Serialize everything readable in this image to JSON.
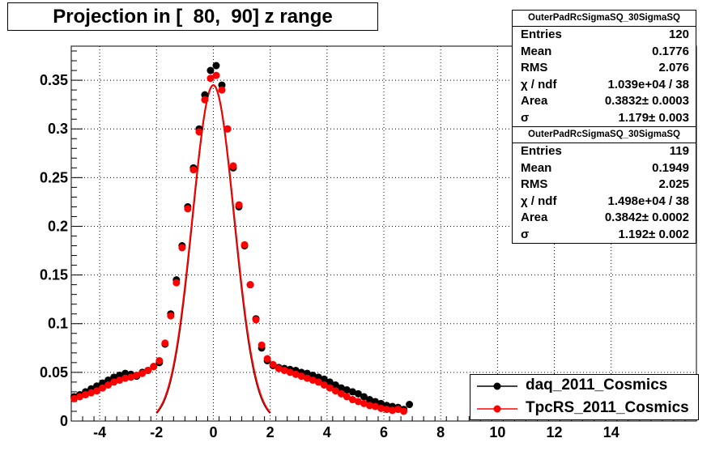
{
  "title": "Projection in [  80,  90] z range",
  "stats_boxes": [
    {
      "name": "OuterPadRcSigmaSQ_30SigmaSQ",
      "rows": [
        {
          "label": "Entries",
          "value": "120"
        },
        {
          "label": "Mean",
          "value": "0.1776"
        },
        {
          "label": "RMS",
          "value": "2.076"
        },
        {
          "label": "χ  / ndf",
          "value": "1.039e+04 / 38"
        },
        {
          "label": "Area",
          "value": "0.3832± 0.0003"
        },
        {
          "label": "σ",
          "value": "1.179± 0.003"
        }
      ]
    },
    {
      "name": "OuterPadRcSigmaSQ_30SigmaSQ",
      "rows": [
        {
          "label": "Entries",
          "value": "119"
        },
        {
          "label": "Mean",
          "value": "0.1949"
        },
        {
          "label": "RMS",
          "value": "2.025"
        },
        {
          "label": "χ  / ndf",
          "value": "1.498e+04 / 38"
        },
        {
          "label": "Area",
          "value": "0.3842± 0.0002"
        },
        {
          "label": "σ",
          "value": "1.192± 0.002"
        }
      ]
    }
  ],
  "legend": [
    {
      "label": "daq_2011_Cosmics",
      "color": "#000000"
    },
    {
      "label": "TpcRS_2011_Cosmics",
      "color": "#ff0000"
    }
  ],
  "chart_data": {
    "type": "scatter",
    "title": "Projection in [  80,  90] z range",
    "xlabel": "",
    "ylabel": "",
    "xlim": [
      -5,
      17
    ],
    "ylim": [
      0,
      0.385
    ],
    "x_ticks": [
      -4,
      -2,
      0,
      2,
      4,
      6,
      8,
      10,
      12,
      14
    ],
    "y_ticks": [
      0,
      0.05,
      0.1,
      0.15,
      0.2,
      0.25,
      0.3,
      0.35
    ],
    "y_tick_labels": [
      "0",
      "0.05",
      "0.1",
      "0.15",
      "0.2",
      "0.25",
      "0.3",
      "0.35"
    ],
    "grid": true,
    "legend_position": "bottom-right",
    "series": [
      {
        "name": "daq_2011_Cosmics",
        "color": "#000000",
        "x": [
          -4.9,
          -4.7,
          -4.5,
          -4.3,
          -4.1,
          -3.9,
          -3.7,
          -3.5,
          -3.3,
          -3.1,
          -2.9,
          -2.7,
          -2.5,
          -2.3,
          -2.1,
          -1.9,
          -1.7,
          -1.5,
          -1.3,
          -1.1,
          -0.9,
          -0.7,
          -0.5,
          -0.3,
          -0.1,
          0.1,
          0.3,
          0.5,
          0.7,
          0.9,
          1.1,
          1.3,
          1.5,
          1.7,
          1.9,
          2.1,
          2.3,
          2.5,
          2.7,
          2.9,
          3.1,
          3.3,
          3.5,
          3.7,
          3.9,
          4.1,
          4.3,
          4.5,
          4.7,
          4.9,
          5.1,
          5.3,
          5.5,
          5.7,
          5.9,
          6.1,
          6.3,
          6.5,
          6.7,
          6.9
        ],
        "y": [
          0.025,
          0.027,
          0.03,
          0.033,
          0.036,
          0.039,
          0.042,
          0.045,
          0.047,
          0.049,
          0.048,
          0.046,
          0.05,
          0.052,
          0.056,
          0.06,
          0.079,
          0.11,
          0.145,
          0.18,
          0.22,
          0.26,
          0.3,
          0.335,
          0.36,
          0.365,
          0.345,
          0.3,
          0.26,
          0.22,
          0.18,
          0.14,
          0.105,
          0.075,
          0.062,
          0.057,
          0.055,
          0.054,
          0.053,
          0.052,
          0.05,
          0.049,
          0.047,
          0.045,
          0.043,
          0.04,
          0.037,
          0.034,
          0.032,
          0.03,
          0.028,
          0.025,
          0.022,
          0.02,
          0.018,
          0.016,
          0.015,
          0.014,
          0.012,
          0.017
        ]
      },
      {
        "name": "TpcRS_2011_Cosmics",
        "color": "#ff0000",
        "x": [
          -4.9,
          -4.7,
          -4.5,
          -4.3,
          -4.1,
          -3.9,
          -3.7,
          -3.5,
          -3.3,
          -3.1,
          -2.9,
          -2.7,
          -2.5,
          -2.3,
          -2.1,
          -1.9,
          -1.7,
          -1.5,
          -1.3,
          -1.1,
          -0.9,
          -0.7,
          -0.5,
          -0.3,
          -0.1,
          0.1,
          0.3,
          0.5,
          0.7,
          0.9,
          1.1,
          1.3,
          1.5,
          1.7,
          1.9,
          2.1,
          2.3,
          2.5,
          2.7,
          2.9,
          3.1,
          3.3,
          3.5,
          3.7,
          3.9,
          4.1,
          4.3,
          4.5,
          4.7,
          4.9,
          5.1,
          5.3,
          5.5,
          5.7,
          5.9,
          6.1,
          6.3,
          6.5,
          6.7
        ],
        "y": [
          0.023,
          0.025,
          0.027,
          0.029,
          0.031,
          0.034,
          0.037,
          0.04,
          0.042,
          0.044,
          0.045,
          0.047,
          0.049,
          0.052,
          0.056,
          0.062,
          0.08,
          0.108,
          0.142,
          0.178,
          0.218,
          0.258,
          0.297,
          0.33,
          0.352,
          0.355,
          0.34,
          0.3,
          0.262,
          0.222,
          0.181,
          0.14,
          0.104,
          0.078,
          0.064,
          0.058,
          0.054,
          0.052,
          0.05,
          0.048,
          0.046,
          0.044,
          0.042,
          0.04,
          0.037,
          0.034,
          0.031,
          0.028,
          0.025,
          0.022,
          0.02,
          0.018,
          0.016,
          0.015,
          0.013,
          0.012,
          0.011,
          0.012,
          0.01
        ]
      }
    ],
    "fits": [
      {
        "series": "daq_2011_Cosmics",
        "type": "gaussian",
        "area": 0.3832,
        "sigma": 1.179,
        "mean": 0,
        "x_range": [
          -2,
          2
        ],
        "color": "#000000"
      },
      {
        "series": "TpcRS_2011_Cosmics",
        "type": "gaussian",
        "area": 0.3842,
        "sigma": 1.192,
        "mean": 0,
        "x_range": [
          -2,
          2
        ],
        "color": "#ff0000"
      }
    ]
  }
}
